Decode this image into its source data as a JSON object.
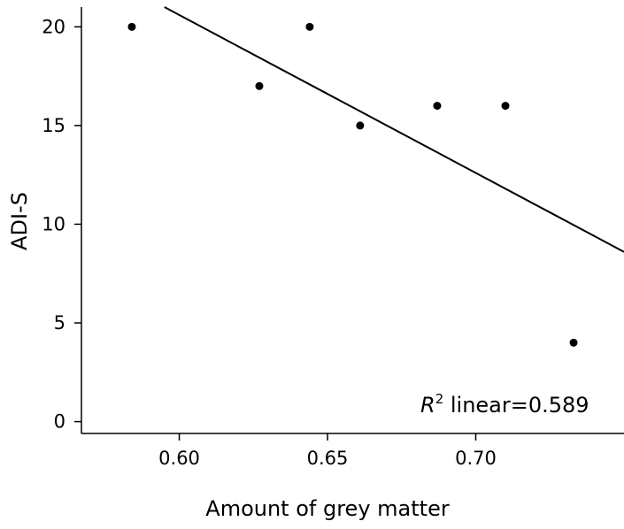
{
  "chart_data": {
    "type": "scatter",
    "xlabel": "Amount of grey matter",
    "ylabel": "ADI-S",
    "xlim": [
      0.567,
      0.75
    ],
    "ylim": [
      -0.6,
      21
    ],
    "x_ticks": [
      {
        "value": 0.6,
        "label": "0.60"
      },
      {
        "value": 0.65,
        "label": "0.65"
      },
      {
        "value": 0.7,
        "label": "0.70"
      }
    ],
    "y_ticks": [
      {
        "value": 0,
        "label": "0"
      },
      {
        "value": 5,
        "label": "5"
      },
      {
        "value": 10,
        "label": "10"
      },
      {
        "value": 15,
        "label": "15"
      },
      {
        "value": 20,
        "label": "20"
      }
    ],
    "points": [
      {
        "x": 0.584,
        "y": 20
      },
      {
        "x": 0.627,
        "y": 17
      },
      {
        "x": 0.644,
        "y": 20
      },
      {
        "x": 0.661,
        "y": 15
      },
      {
        "x": 0.687,
        "y": 16
      },
      {
        "x": 0.71,
        "y": 16
      },
      {
        "x": 0.733,
        "y": 4
      }
    ],
    "fit_line": {
      "x": [
        0.595,
        0.75
      ],
      "y": [
        21.0,
        8.6
      ]
    },
    "annotation": {
      "r_symbol": "R",
      "superscript": "2",
      "text": " linear=0.589"
    },
    "grid": false,
    "legend": "none"
  }
}
